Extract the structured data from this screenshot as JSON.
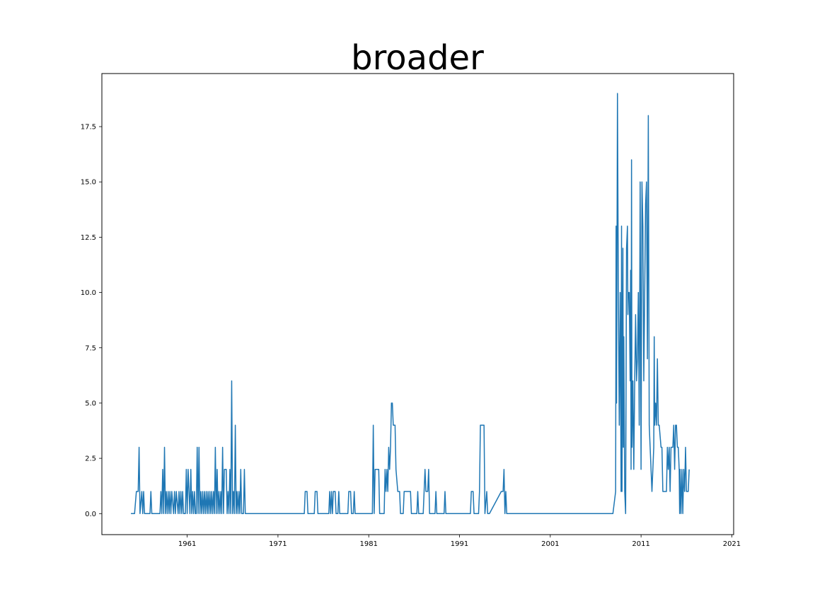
{
  "chart_data": {
    "type": "line",
    "title": "broader",
    "xlabel": "",
    "ylabel": "",
    "xlim": [
      1951.6,
      2021.2
    ],
    "ylim": [
      -0.95,
      19.9
    ],
    "x_ticks": [
      1961,
      1971,
      1981,
      1991,
      2001,
      2011,
      2021
    ],
    "y_ticks": [
      0.0,
      2.5,
      5.0,
      7.5,
      10.0,
      12.5,
      15.0,
      17.5
    ],
    "y_tick_labels": [
      "0.0",
      "2.5",
      "5.0",
      "7.5",
      "10.0",
      "12.5",
      "15.0",
      "17.5"
    ],
    "grid": false,
    "series": [
      {
        "color": "#1f77b4",
        "points": [
          [
            1954.8,
            0
          ],
          [
            1955.2,
            0
          ],
          [
            1955.4,
            1
          ],
          [
            1955.6,
            1
          ],
          [
            1955.7,
            3
          ],
          [
            1955.8,
            0
          ],
          [
            1956.0,
            1
          ],
          [
            1956.1,
            0
          ],
          [
            1956.2,
            1
          ],
          [
            1956.3,
            0
          ],
          [
            1956.5,
            0
          ],
          [
            1956.9,
            0
          ],
          [
            1957.0,
            1
          ],
          [
            1957.1,
            0
          ],
          [
            1958.0,
            0
          ],
          [
            1958.1,
            1
          ],
          [
            1958.2,
            0
          ],
          [
            1958.3,
            2
          ],
          [
            1958.4,
            0
          ],
          [
            1958.5,
            3
          ],
          [
            1958.6,
            0
          ],
          [
            1958.7,
            1
          ],
          [
            1958.8,
            0
          ],
          [
            1958.9,
            1
          ],
          [
            1959.0,
            0
          ],
          [
            1959.1,
            1
          ],
          [
            1959.2,
            0
          ],
          [
            1959.3,
            1
          ],
          [
            1959.5,
            0
          ],
          [
            1959.6,
            1
          ],
          [
            1959.7,
            0
          ],
          [
            1959.8,
            1
          ],
          [
            1960.0,
            0
          ],
          [
            1960.1,
            1
          ],
          [
            1960.2,
            0
          ],
          [
            1960.3,
            1
          ],
          [
            1960.4,
            0
          ],
          [
            1960.5,
            1
          ],
          [
            1960.6,
            0
          ],
          [
            1960.8,
            0
          ],
          [
            1960.9,
            2
          ],
          [
            1961.0,
            0
          ],
          [
            1961.1,
            2
          ],
          [
            1961.2,
            1
          ],
          [
            1961.3,
            0
          ],
          [
            1961.4,
            2
          ],
          [
            1961.5,
            0
          ],
          [
            1961.6,
            1
          ],
          [
            1961.7,
            0
          ],
          [
            1961.8,
            1
          ],
          [
            1961.9,
            0
          ],
          [
            1962.0,
            0
          ],
          [
            1962.1,
            3
          ],
          [
            1962.2,
            0
          ],
          [
            1962.3,
            3
          ],
          [
            1962.4,
            0
          ],
          [
            1962.5,
            1
          ],
          [
            1962.6,
            0
          ],
          [
            1962.7,
            1
          ],
          [
            1962.8,
            0
          ],
          [
            1962.9,
            1
          ],
          [
            1963.0,
            0
          ],
          [
            1963.1,
            1
          ],
          [
            1963.2,
            0
          ],
          [
            1963.3,
            1
          ],
          [
            1963.4,
            0
          ],
          [
            1963.5,
            1
          ],
          [
            1963.6,
            0
          ],
          [
            1963.7,
            1
          ],
          [
            1963.8,
            0
          ],
          [
            1963.9,
            1
          ],
          [
            1964.0,
            0
          ],
          [
            1964.1,
            3
          ],
          [
            1964.2,
            0
          ],
          [
            1964.3,
            2
          ],
          [
            1964.4,
            0
          ],
          [
            1964.5,
            1
          ],
          [
            1964.6,
            0
          ],
          [
            1964.7,
            1
          ],
          [
            1964.8,
            0
          ],
          [
            1964.9,
            3
          ],
          [
            1965.0,
            0
          ],
          [
            1965.1,
            2
          ],
          [
            1965.3,
            2
          ],
          [
            1965.4,
            0
          ],
          [
            1965.5,
            1
          ],
          [
            1965.6,
            0
          ],
          [
            1965.7,
            2
          ],
          [
            1965.8,
            0
          ],
          [
            1965.9,
            6
          ],
          [
            1966.0,
            0
          ],
          [
            1966.1,
            1
          ],
          [
            1966.2,
            0
          ],
          [
            1966.3,
            4
          ],
          [
            1966.4,
            0
          ],
          [
            1966.5,
            1
          ],
          [
            1966.6,
            0
          ],
          [
            1966.7,
            1
          ],
          [
            1966.8,
            0
          ],
          [
            1966.9,
            2
          ],
          [
            1967.0,
            0
          ],
          [
            1967.1,
            0
          ],
          [
            1967.2,
            0
          ],
          [
            1967.3,
            2
          ],
          [
            1967.4,
            0
          ],
          [
            1973.9,
            0
          ],
          [
            1974.0,
            1
          ],
          [
            1974.2,
            1
          ],
          [
            1974.3,
            0
          ],
          [
            1975.0,
            0
          ],
          [
            1975.1,
            1
          ],
          [
            1975.3,
            1
          ],
          [
            1975.4,
            0
          ],
          [
            1976.6,
            0
          ],
          [
            1976.7,
            1
          ],
          [
            1976.8,
            0
          ],
          [
            1976.9,
            1
          ],
          [
            1977.0,
            0
          ],
          [
            1977.1,
            1
          ],
          [
            1977.3,
            1
          ],
          [
            1977.4,
            0
          ],
          [
            1977.6,
            0
          ],
          [
            1977.7,
            1
          ],
          [
            1977.8,
            0
          ],
          [
            1978.7,
            0
          ],
          [
            1978.8,
            1
          ],
          [
            1979.0,
            1
          ],
          [
            1979.1,
            0
          ],
          [
            1979.3,
            0
          ],
          [
            1979.4,
            1
          ],
          [
            1979.5,
            0
          ],
          [
            1981.4,
            0
          ],
          [
            1981.5,
            4
          ],
          [
            1981.6,
            0
          ],
          [
            1981.7,
            2
          ],
          [
            1982.1,
            2
          ],
          [
            1982.2,
            0
          ],
          [
            1982.5,
            0
          ],
          [
            1982.7,
            0
          ],
          [
            1982.8,
            2
          ],
          [
            1982.9,
            1
          ],
          [
            1983.0,
            2
          ],
          [
            1983.1,
            1
          ],
          [
            1983.2,
            3
          ],
          [
            1983.3,
            2
          ],
          [
            1983.4,
            3
          ],
          [
            1983.5,
            5
          ],
          [
            1983.6,
            5
          ],
          [
            1983.7,
            4
          ],
          [
            1983.9,
            4
          ],
          [
            1984.0,
            2
          ],
          [
            1984.2,
            1
          ],
          [
            1984.4,
            1
          ],
          [
            1984.5,
            0
          ],
          [
            1984.8,
            0
          ],
          [
            1984.9,
            1
          ],
          [
            1985.6,
            1
          ],
          [
            1985.7,
            0
          ],
          [
            1986.3,
            0
          ],
          [
            1986.4,
            1
          ],
          [
            1986.5,
            0
          ],
          [
            1987.0,
            0
          ],
          [
            1987.1,
            1
          ],
          [
            1987.2,
            2
          ],
          [
            1987.3,
            1
          ],
          [
            1987.5,
            1
          ],
          [
            1987.6,
            2
          ],
          [
            1987.7,
            0
          ],
          [
            1988.3,
            0
          ],
          [
            1988.4,
            1
          ],
          [
            1988.5,
            0
          ],
          [
            1989.3,
            0
          ],
          [
            1989.4,
            1
          ],
          [
            1989.5,
            0
          ],
          [
            1992.2,
            0
          ],
          [
            1992.3,
            1
          ],
          [
            1992.5,
            1
          ],
          [
            1992.6,
            0
          ],
          [
            1993.1,
            0
          ],
          [
            1993.2,
            1
          ],
          [
            1993.3,
            4
          ],
          [
            1993.7,
            4
          ],
          [
            1993.8,
            0
          ],
          [
            1994.0,
            1
          ],
          [
            1994.1,
            0
          ],
          [
            1994.3,
            0
          ],
          [
            1995.6,
            1
          ],
          [
            1995.8,
            1
          ],
          [
            1995.9,
            2
          ],
          [
            1996.0,
            0
          ],
          [
            1996.1,
            1
          ],
          [
            1996.2,
            0
          ],
          [
            2007.9,
            0
          ],
          [
            2008.2,
            1
          ],
          [
            2008.25,
            13
          ],
          [
            2008.3,
            5
          ],
          [
            2008.4,
            19
          ],
          [
            2008.5,
            10
          ],
          [
            2008.6,
            4
          ],
          [
            2008.7,
            10
          ],
          [
            2008.8,
            1
          ],
          [
            2008.85,
            13
          ],
          [
            2008.9,
            1
          ],
          [
            2009.0,
            12
          ],
          [
            2009.05,
            3
          ],
          [
            2009.1,
            8
          ],
          [
            2009.2,
            1
          ],
          [
            2009.3,
            0
          ],
          [
            2009.4,
            12
          ],
          [
            2009.5,
            13
          ],
          [
            2009.55,
            9
          ],
          [
            2009.6,
            10
          ],
          [
            2009.7,
            10
          ],
          [
            2009.8,
            6
          ],
          [
            2009.85,
            11
          ],
          [
            2009.9,
            2
          ],
          [
            2009.95,
            16
          ],
          [
            2010.0,
            3
          ],
          [
            2010.1,
            6
          ],
          [
            2010.2,
            2
          ],
          [
            2010.3,
            6
          ],
          [
            2010.4,
            9
          ],
          [
            2010.5,
            6
          ],
          [
            2010.6,
            7
          ],
          [
            2010.7,
            10
          ],
          [
            2010.8,
            4
          ],
          [
            2010.9,
            15
          ],
          [
            2011.0,
            2
          ],
          [
            2011.1,
            15
          ],
          [
            2011.2,
            13
          ],
          [
            2011.3,
            6
          ],
          [
            2011.5,
            14
          ],
          [
            2011.6,
            15
          ],
          [
            2011.7,
            7
          ],
          [
            2011.8,
            18
          ],
          [
            2011.9,
            4
          ],
          [
            2012.0,
            3
          ],
          [
            2012.2,
            1
          ],
          [
            2012.4,
            3
          ],
          [
            2012.45,
            8
          ],
          [
            2012.5,
            4
          ],
          [
            2012.6,
            5
          ],
          [
            2012.7,
            4
          ],
          [
            2012.8,
            7
          ],
          [
            2012.9,
            4
          ],
          [
            2013.0,
            4
          ],
          [
            2013.2,
            3
          ],
          [
            2013.3,
            3
          ],
          [
            2013.4,
            1
          ],
          [
            2013.8,
            1
          ],
          [
            2013.9,
            3
          ],
          [
            2014.0,
            2
          ],
          [
            2014.1,
            3
          ],
          [
            2014.2,
            1
          ],
          [
            2014.3,
            3
          ],
          [
            2014.5,
            3
          ],
          [
            2014.6,
            4
          ],
          [
            2014.7,
            2
          ],
          [
            2014.8,
            4
          ],
          [
            2014.9,
            4
          ],
          [
            2015.0,
            3
          ],
          [
            2015.1,
            3
          ],
          [
            2015.2,
            2
          ],
          [
            2015.25,
            0
          ],
          [
            2015.3,
            2
          ],
          [
            2015.4,
            0
          ],
          [
            2015.5,
            2
          ],
          [
            2015.6,
            0
          ],
          [
            2015.7,
            2
          ],
          [
            2015.8,
            1
          ],
          [
            2015.9,
            3
          ],
          [
            2016.0,
            1
          ],
          [
            2016.1,
            1
          ],
          [
            2016.2,
            1
          ],
          [
            2016.3,
            2
          ]
        ]
      }
    ]
  }
}
